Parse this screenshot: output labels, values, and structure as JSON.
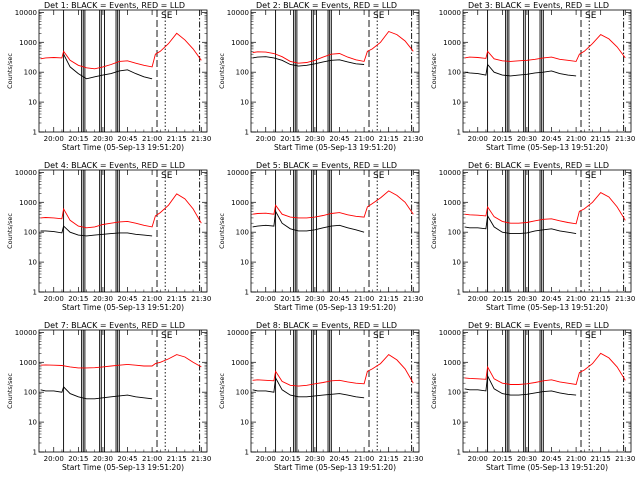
{
  "common": {
    "ylabel": "Counts/sec",
    "xlabel": "Start Time (05-Sep-13 19:51:20)",
    "x_tick_labels": [
      "20:00",
      "20:15",
      "20:30",
      "20:45",
      "21:00",
      "21:15",
      "21:30"
    ],
    "y_tick_labels": [
      "1",
      "10",
      "100",
      "1000",
      "10000"
    ],
    "marker_label": "SE",
    "colors": {
      "events": "#000000",
      "lld": "#ff0000"
    }
  },
  "chart_data": [
    {
      "type": "line",
      "title": "Det 1: BLACK = Events, RED = LLD",
      "xlabel": "Start Time (05-Sep-13 19:51:20)",
      "ylabel": "Counts/sec",
      "yscale": "log",
      "ylim": [
        1,
        12000
      ],
      "x_range": [
        "19:51",
        "21:33"
      ],
      "series": [
        {
          "name": "Events",
          "x": [
            "20:06",
            "20:10",
            "20:15",
            "20:20",
            "20:25",
            "20:30",
            "20:35",
            "20:40",
            "20:45",
            "20:50",
            "20:55",
            "21:00"
          ],
          "values": [
            400,
            150,
            90,
            60,
            70,
            80,
            90,
            110,
            120,
            90,
            70,
            60
          ]
        },
        {
          "name": "LLD",
          "x": [
            "19:52",
            "19:55",
            "20:00",
            "20:05",
            "20:06",
            "20:10",
            "20:15",
            "20:20",
            "20:25",
            "20:30",
            "20:35",
            "20:40",
            "20:45",
            "20:50",
            "20:55",
            "21:00",
            "21:02",
            "21:05",
            "21:10",
            "21:15",
            "21:20",
            "21:25",
            "21:30"
          ],
          "values": [
            280,
            300,
            310,
            300,
            500,
            250,
            170,
            140,
            130,
            150,
            180,
            230,
            240,
            200,
            170,
            150,
            400,
            500,
            900,
            2000,
            1200,
            600,
            250
          ]
        }
      ]
    },
    {
      "type": "line",
      "title": "Det 2: BLACK = Events, RED = LLD",
      "xlabel": "Start Time (05-Sep-13 19:51:20)",
      "ylabel": "Counts/sec",
      "yscale": "log",
      "ylim": [
        1,
        12000
      ],
      "x_range": [
        "19:51",
        "21:33"
      ],
      "series": [
        {
          "name": "Events",
          "x": [
            "19:52",
            "19:55",
            "20:00",
            "20:05",
            "20:10",
            "20:15",
            "20:20",
            "20:25",
            "20:30",
            "20:35",
            "20:40",
            "20:45",
            "20:50",
            "20:55",
            "21:00"
          ],
          "values": [
            300,
            320,
            330,
            300,
            250,
            180,
            160,
            170,
            190,
            220,
            250,
            260,
            220,
            190,
            180
          ]
        },
        {
          "name": "LLD",
          "x": [
            "19:52",
            "19:55",
            "20:00",
            "20:05",
            "20:10",
            "20:15",
            "20:20",
            "20:25",
            "20:30",
            "20:35",
            "20:40",
            "20:45",
            "20:50",
            "20:55",
            "21:00",
            "21:02",
            "21:05",
            "21:10",
            "21:15",
            "21:20",
            "21:25",
            "21:30"
          ],
          "values": [
            450,
            480,
            470,
            420,
            330,
            230,
            200,
            210,
            250,
            320,
            400,
            420,
            320,
            260,
            230,
            500,
            600,
            1000,
            2300,
            1800,
            1100,
            500
          ]
        }
      ]
    },
    {
      "type": "line",
      "title": "Det 3: BLACK = Events, RED = LLD",
      "xlabel": "Start Time (05-Sep-13 19:51:20)",
      "ylabel": "Counts/sec",
      "yscale": "log",
      "ylim": [
        1,
        12000
      ],
      "x_range": [
        "19:51",
        "21:33"
      ],
      "series": [
        {
          "name": "Events",
          "x": [
            "19:52",
            "19:55",
            "20:00",
            "20:05",
            "20:06",
            "20:10",
            "20:15",
            "20:20",
            "20:25",
            "20:30",
            "20:35",
            "20:40",
            "20:45",
            "20:50",
            "20:55",
            "21:00"
          ],
          "values": [
            100,
            95,
            90,
            80,
            180,
            100,
            80,
            75,
            80,
            85,
            95,
            100,
            110,
            90,
            80,
            75
          ]
        },
        {
          "name": "LLD",
          "x": [
            "19:52",
            "19:55",
            "20:00",
            "20:05",
            "20:06",
            "20:10",
            "20:15",
            "20:20",
            "20:25",
            "20:30",
            "20:35",
            "20:40",
            "20:45",
            "20:50",
            "20:55",
            "21:00",
            "21:02",
            "21:05",
            "21:10",
            "21:15",
            "21:20",
            "21:25",
            "21:30"
          ],
          "values": [
            300,
            320,
            310,
            290,
            500,
            280,
            240,
            230,
            240,
            250,
            270,
            300,
            320,
            270,
            250,
            230,
            400,
            500,
            900,
            1800,
            1300,
            700,
            300
          ]
        }
      ]
    },
    {
      "type": "line",
      "title": "Det 4: BLACK = Events, RED = LLD",
      "xlabel": "Start Time (05-Sep-13 19:51:20)",
      "ylabel": "Counts/sec",
      "yscale": "log",
      "ylim": [
        1,
        12000
      ],
      "x_range": [
        "19:51",
        "21:33"
      ],
      "series": [
        {
          "name": "Events",
          "x": [
            "19:52",
            "19:55",
            "20:00",
            "20:05",
            "20:06",
            "20:10",
            "20:15",
            "20:20",
            "20:25",
            "20:30",
            "20:35",
            "20:40",
            "20:45",
            "20:50",
            "20:55",
            "21:00"
          ],
          "values": [
            110,
            110,
            105,
            95,
            160,
            100,
            80,
            75,
            80,
            85,
            90,
            95,
            95,
            85,
            80,
            75
          ]
        },
        {
          "name": "LLD",
          "x": [
            "19:52",
            "19:55",
            "20:00",
            "20:05",
            "20:06",
            "20:10",
            "20:15",
            "20:20",
            "20:25",
            "20:30",
            "20:35",
            "20:40",
            "20:45",
            "20:50",
            "20:55",
            "21:00",
            "21:02",
            "21:05",
            "21:10",
            "21:15",
            "21:20",
            "21:25",
            "21:30"
          ],
          "values": [
            300,
            310,
            300,
            280,
            600,
            250,
            160,
            140,
            150,
            180,
            200,
            220,
            230,
            200,
            170,
            150,
            350,
            450,
            800,
            1900,
            1300,
            600,
            200
          ]
        }
      ]
    },
    {
      "type": "line",
      "title": "Det 5: BLACK = Events, RED = LLD",
      "xlabel": "Start Time (05-Sep-13 19:51:20)",
      "ylabel": "Counts/sec",
      "yscale": "log",
      "ylim": [
        1,
        12000
      ],
      "x_range": [
        "19:51",
        "21:33"
      ],
      "series": [
        {
          "name": "Events",
          "x": [
            "19:52",
            "19:55",
            "20:00",
            "20:05",
            "20:06",
            "20:10",
            "20:15",
            "20:20",
            "20:25",
            "20:30",
            "20:35",
            "20:40",
            "20:45",
            "20:50",
            "20:55",
            "21:00"
          ],
          "values": [
            150,
            160,
            170,
            160,
            500,
            200,
            130,
            110,
            110,
            120,
            140,
            160,
            170,
            140,
            120,
            100
          ]
        },
        {
          "name": "LLD",
          "x": [
            "19:52",
            "19:55",
            "20:00",
            "20:05",
            "20:06",
            "20:10",
            "20:15",
            "20:20",
            "20:25",
            "20:30",
            "20:35",
            "20:40",
            "20:45",
            "20:50",
            "20:55",
            "21:00",
            "21:02",
            "21:05",
            "21:10",
            "21:15",
            "21:20",
            "21:25",
            "21:30"
          ],
          "values": [
            400,
            420,
            430,
            400,
            800,
            400,
            320,
            300,
            300,
            320,
            360,
            420,
            450,
            380,
            340,
            320,
            700,
            900,
            1400,
            2400,
            1700,
            1000,
            400
          ]
        }
      ]
    },
    {
      "type": "line",
      "title": "Det 6: BLACK = Events, RED = LLD",
      "xlabel": "Start Time (05-Sep-13 19:51:20)",
      "ylabel": "Counts/sec",
      "yscale": "log",
      "ylim": [
        1,
        12000
      ],
      "x_range": [
        "19:51",
        "21:33"
      ],
      "series": [
        {
          "name": "Events",
          "x": [
            "19:52",
            "19:55",
            "20:00",
            "20:05",
            "20:06",
            "20:10",
            "20:15",
            "20:20",
            "20:25",
            "20:30",
            "20:35",
            "20:40",
            "20:45",
            "20:50",
            "20:55",
            "21:00"
          ],
          "values": [
            150,
            140,
            140,
            130,
            350,
            150,
            100,
            90,
            90,
            95,
            110,
            120,
            130,
            110,
            100,
            90
          ]
        },
        {
          "name": "LLD",
          "x": [
            "19:52",
            "19:55",
            "20:00",
            "20:05",
            "20:06",
            "20:10",
            "20:15",
            "20:20",
            "20:25",
            "20:30",
            "20:35",
            "20:40",
            "20:45",
            "20:50",
            "20:55",
            "21:00",
            "21:02",
            "21:05",
            "21:10",
            "21:15",
            "21:20",
            "21:25",
            "21:30"
          ],
          "values": [
            400,
            380,
            370,
            350,
            700,
            330,
            230,
            200,
            200,
            210,
            240,
            270,
            280,
            240,
            210,
            190,
            500,
            600,
            1000,
            2100,
            1500,
            700,
            250
          ]
        }
      ]
    },
    {
      "type": "line",
      "title": "Det 7: BLACK = Events, RED = LLD",
      "xlabel": "Start Time (05-Sep-13 19:51:20)",
      "ylabel": "Counts/sec",
      "yscale": "log",
      "ylim": [
        1,
        12000
      ],
      "x_range": [
        "19:51",
        "21:33"
      ],
      "series": [
        {
          "name": "Events",
          "x": [
            "19:52",
            "19:55",
            "20:00",
            "20:05",
            "20:06",
            "20:10",
            "20:15",
            "20:20",
            "20:25",
            "20:30",
            "20:35",
            "20:40",
            "20:45",
            "20:50",
            "20:55",
            "21:00"
          ],
          "values": [
            120,
            110,
            110,
            100,
            150,
            90,
            70,
            60,
            60,
            65,
            70,
            75,
            80,
            70,
            65,
            60
          ]
        },
        {
          "name": "LLD",
          "x": [
            "19:52",
            "19:55",
            "20:00",
            "20:05",
            "20:10",
            "20:15",
            "20:20",
            "20:25",
            "20:30",
            "20:35",
            "20:40",
            "20:45",
            "20:50",
            "20:55",
            "21:00",
            "21:02",
            "21:05",
            "21:10",
            "21:15",
            "21:20",
            "21:25",
            "21:30"
          ],
          "values": [
            800,
            820,
            800,
            780,
            700,
            650,
            650,
            660,
            700,
            750,
            800,
            850,
            800,
            750,
            750,
            900,
            1000,
            1300,
            1800,
            1500,
            1000,
            700
          ]
        }
      ]
    },
    {
      "type": "line",
      "title": "Det 8: BLACK = Events, RED = LLD",
      "xlabel": "Start Time (05-Sep-13 19:51:20)",
      "ylabel": "Counts/sec",
      "yscale": "log",
      "ylim": [
        1,
        12000
      ],
      "x_range": [
        "19:51",
        "21:33"
      ],
      "series": [
        {
          "name": "Events",
          "x": [
            "19:52",
            "19:55",
            "20:00",
            "20:05",
            "20:06",
            "20:10",
            "20:15",
            "20:20",
            "20:25",
            "20:30",
            "20:35",
            "20:40",
            "20:45",
            "20:50",
            "20:55",
            "21:00"
          ],
          "values": [
            120,
            110,
            110,
            100,
            300,
            120,
            80,
            70,
            70,
            75,
            80,
            85,
            90,
            80,
            70,
            65
          ]
        },
        {
          "name": "LLD",
          "x": [
            "19:52",
            "19:55",
            "20:00",
            "20:05",
            "20:06",
            "20:10",
            "20:15",
            "20:20",
            "20:25",
            "20:30",
            "20:35",
            "20:40",
            "20:45",
            "20:50",
            "20:55",
            "21:00",
            "21:02",
            "21:05",
            "21:10",
            "21:15",
            "21:20",
            "21:25",
            "21:30"
          ],
          "values": [
            250,
            260,
            250,
            240,
            500,
            230,
            170,
            160,
            170,
            190,
            210,
            240,
            250,
            220,
            200,
            190,
            500,
            600,
            900,
            1800,
            1200,
            600,
            200
          ]
        }
      ]
    },
    {
      "type": "line",
      "title": "Det 9: BLACK = Events, RED = LLD",
      "xlabel": "Start Time (05-Sep-13 19:51:20)",
      "ylabel": "Counts/sec",
      "yscale": "log",
      "ylim": [
        1,
        12000
      ],
      "x_range": [
        "19:51",
        "21:33"
      ],
      "series": [
        {
          "name": "Events",
          "x": [
            "19:52",
            "19:55",
            "20:00",
            "20:05",
            "20:06",
            "20:10",
            "20:15",
            "20:20",
            "20:25",
            "20:30",
            "20:35",
            "20:40",
            "20:45",
            "20:50",
            "20:55",
            "21:00"
          ],
          "values": [
            130,
            120,
            120,
            110,
            350,
            130,
            90,
            80,
            80,
            85,
            95,
            105,
            110,
            95,
            85,
            80
          ]
        },
        {
          "name": "LLD",
          "x": [
            "19:52",
            "19:55",
            "20:00",
            "20:05",
            "20:06",
            "20:10",
            "20:15",
            "20:20",
            "20:25",
            "20:30",
            "20:35",
            "20:40",
            "20:45",
            "20:50",
            "20:55",
            "21:00",
            "21:02",
            "21:05",
            "21:10",
            "21:15",
            "21:20",
            "21:25",
            "21:30"
          ],
          "values": [
            300,
            290,
            280,
            270,
            700,
            280,
            200,
            180,
            180,
            190,
            210,
            240,
            260,
            220,
            200,
            180,
            450,
            550,
            900,
            2000,
            1400,
            700,
            250
          ]
        }
      ]
    }
  ]
}
